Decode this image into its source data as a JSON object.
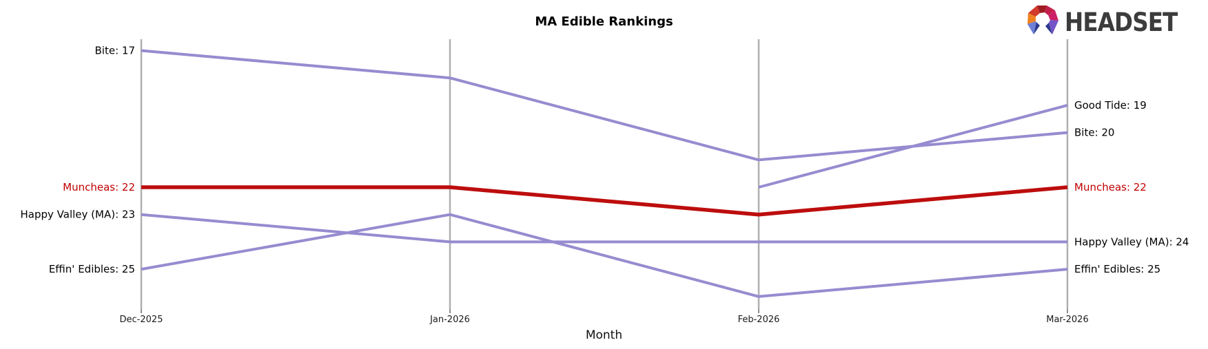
{
  "title": "MA Edible Rankings",
  "logo_text": "HEADSET",
  "colors": {
    "line": "#978bd0",
    "highlight_line": "#bd0d0d",
    "highlight_label": "#c00000",
    "label_text": "#000000",
    "tick_text": "#1a1a1a",
    "axis": "#afafaf",
    "logo_text": "#3c3c3c"
  },
  "chart_data": {
    "type": "line",
    "subtype": "bump-ranking-chart",
    "title": "MA Edible Rankings",
    "xlabel": "Month",
    "ylabel": "",
    "x": [
      "Dec-2025",
      "Jan-2026",
      "Feb-2026",
      "Mar-2026"
    ],
    "y_axis_note": "rank scale, lower rank is higher on chart, no y tick labels",
    "y_range_visible": [
      17,
      26
    ],
    "grid": "vertical-month-lines-only",
    "legend": "none; series labeled at line endpoints",
    "series": [
      {
        "name": "Bite",
        "ranks": [
          17,
          18,
          21,
          20
        ],
        "highlight": false
      },
      {
        "name": "Good Tide",
        "ranks": [
          null,
          null,
          22,
          19
        ],
        "highlight": false
      },
      {
        "name": "Muncheas",
        "ranks": [
          22,
          22,
          23,
          22
        ],
        "highlight": true
      },
      {
        "name": "Happy Valley (MA)",
        "ranks": [
          23,
          24,
          24,
          24
        ],
        "highlight": false
      },
      {
        "name": "Effin' Edibles",
        "ranks": [
          25,
          23,
          26,
          25
        ],
        "highlight": false
      }
    ],
    "left_endpoint_labels": [
      "Bite: 17",
      "Muncheas: 22",
      "Happy Valley (MA): 23",
      "Effin' Edibles: 25"
    ],
    "right_endpoint_labels": [
      "Good Tide: 19",
      "Bite: 20",
      "Muncheas: 22",
      "Happy Valley (MA): 24",
      "Effin' Edibles: 25"
    ]
  }
}
